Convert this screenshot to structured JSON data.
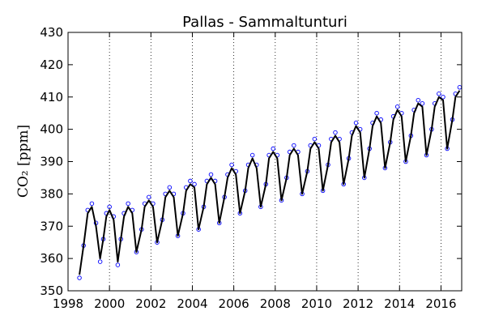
{
  "chart_data": {
    "type": "scatter",
    "title": "Pallas - Sammaltunturi",
    "xlabel": "",
    "ylabel": "CO₂ [ppm]",
    "xlim": [
      1998,
      2017
    ],
    "ylim": [
      350,
      430
    ],
    "x_ticks": [
      1998,
      2000,
      2002,
      2004,
      2006,
      2008,
      2010,
      2012,
      2014,
      2016
    ],
    "x_tick_labels": [
      "1998",
      "2000",
      "2002",
      "2004",
      "2006",
      "2008",
      "2010",
      "2012",
      "2014",
      "2016"
    ],
    "y_ticks": [
      350,
      360,
      370,
      380,
      390,
      400,
      410,
      420,
      430
    ],
    "y_tick_labels": [
      "350",
      "360",
      "370",
      "380",
      "390",
      "400",
      "410",
      "420",
      "430"
    ],
    "vertical_dotted_grid_at": [
      2000,
      2002,
      2004,
      2006,
      2008,
      2010,
      2012,
      2014,
      2016
    ],
    "colors": {
      "scatter": "#0000ff",
      "line": "#000000"
    },
    "series": [
      {
        "style": "hollow circles",
        "x": [
          1998.55,
          1998.75,
          1998.95,
          1999.15,
          1999.35,
          1999.55,
          1999.7,
          1999.85,
          2000.0,
          2000.2,
          2000.4,
          2000.55,
          2000.7,
          2000.9,
          2001.1,
          2001.3,
          2001.55,
          2001.7,
          2001.9,
          2002.1,
          2002.3,
          2002.55,
          2002.7,
          2002.9,
          2003.1,
          2003.3,
          2003.55,
          2003.7,
          2003.9,
          2004.1,
          2004.3,
          2004.55,
          2004.7,
          2004.9,
          2005.1,
          2005.3,
          2005.55,
          2005.7,
          2005.9,
          2006.1,
          2006.3,
          2006.55,
          2006.7,
          2006.9,
          2007.1,
          2007.3,
          2007.55,
          2007.7,
          2007.9,
          2008.1,
          2008.3,
          2008.55,
          2008.7,
          2008.9,
          2009.1,
          2009.3,
          2009.55,
          2009.7,
          2009.9,
          2010.1,
          2010.3,
          2010.55,
          2010.7,
          2010.9,
          2011.1,
          2011.3,
          2011.55,
          2011.7,
          2011.9,
          2012.1,
          2012.3,
          2012.55,
          2012.7,
          2012.9,
          2013.1,
          2013.3,
          2013.55,
          2013.7,
          2013.9,
          2014.1,
          2014.3,
          2014.55,
          2014.7,
          2014.9,
          2015.1,
          2015.3,
          2015.55,
          2015.7,
          2015.9,
          2016.1,
          2016.3,
          2016.55,
          2016.7,
          2016.9
        ],
        "y": [
          354,
          364,
          375,
          377,
          371,
          359,
          366,
          374,
          376,
          373,
          358,
          366,
          374,
          377,
          375,
          362,
          369,
          377,
          379,
          377,
          365,
          372,
          380,
          382,
          380,
          367,
          374,
          382,
          384,
          383,
          369,
          376,
          384,
          386,
          384,
          371,
          379,
          386,
          389,
          387,
          374,
          381,
          389,
          392,
          389,
          376,
          383,
          392,
          394,
          392,
          378,
          385,
          393,
          395,
          393,
          380,
          387,
          395,
          397,
          395,
          381,
          389,
          397,
          399,
          397,
          383,
          391,
          399,
          402,
          400,
          385,
          394,
          402,
          405,
          403,
          388,
          396,
          404,
          407,
          405,
          390,
          398,
          406,
          409,
          408,
          392,
          400,
          408,
          411,
          410,
          394,
          403,
          411,
          413
        ]
      },
      {
        "style": "line",
        "x": [
          1998.55,
          1998.75,
          1998.95,
          1999.15,
          1999.35,
          1999.55,
          1999.7,
          1999.85,
          2000.0,
          2000.2,
          2000.4,
          2000.55,
          2000.7,
          2000.9,
          2001.1,
          2001.3,
          2001.55,
          2001.7,
          2001.9,
          2002.1,
          2002.3,
          2002.55,
          2002.7,
          2002.9,
          2003.1,
          2003.3,
          2003.55,
          2003.7,
          2003.9,
          2004.1,
          2004.3,
          2004.55,
          2004.7,
          2004.9,
          2005.1,
          2005.3,
          2005.55,
          2005.7,
          2005.9,
          2006.1,
          2006.3,
          2006.55,
          2006.7,
          2006.9,
          2007.1,
          2007.3,
          2007.55,
          2007.7,
          2007.9,
          2008.1,
          2008.3,
          2008.55,
          2008.7,
          2008.9,
          2009.1,
          2009.3,
          2009.55,
          2009.7,
          2009.9,
          2010.1,
          2010.3,
          2010.55,
          2010.7,
          2010.9,
          2011.1,
          2011.3,
          2011.55,
          2011.7,
          2011.9,
          2012.1,
          2012.3,
          2012.55,
          2012.7,
          2012.9,
          2013.1,
          2013.3,
          2013.55,
          2013.7,
          2013.9,
          2014.1,
          2014.3,
          2014.55,
          2014.7,
          2014.9,
          2015.1,
          2015.3,
          2015.55,
          2015.7,
          2015.9,
          2016.1,
          2016.3,
          2016.55,
          2016.7,
          2016.9
        ],
        "y": [
          355,
          364,
          374,
          376,
          370,
          360,
          366,
          373,
          375,
          372,
          359,
          366,
          373,
          376,
          374,
          362,
          369,
          376,
          378,
          376,
          365,
          372,
          379,
          381,
          379,
          367,
          374,
          381,
          383,
          382,
          369,
          376,
          383,
          385,
          383,
          371,
          379,
          385,
          388,
          386,
          374,
          381,
          388,
          391,
          388,
          376,
          383,
          391,
          393,
          391,
          378,
          385,
          392,
          394,
          392,
          380,
          387,
          394,
          396,
          394,
          381,
          389,
          396,
          398,
          396,
          383,
          391,
          398,
          401,
          399,
          385,
          394,
          401,
          404,
          402,
          388,
          396,
          403,
          406,
          404,
          390,
          398,
          405,
          408,
          407,
          392,
          400,
          407,
          410,
          409,
          394,
          403,
          410,
          412
        ]
      }
    ]
  }
}
